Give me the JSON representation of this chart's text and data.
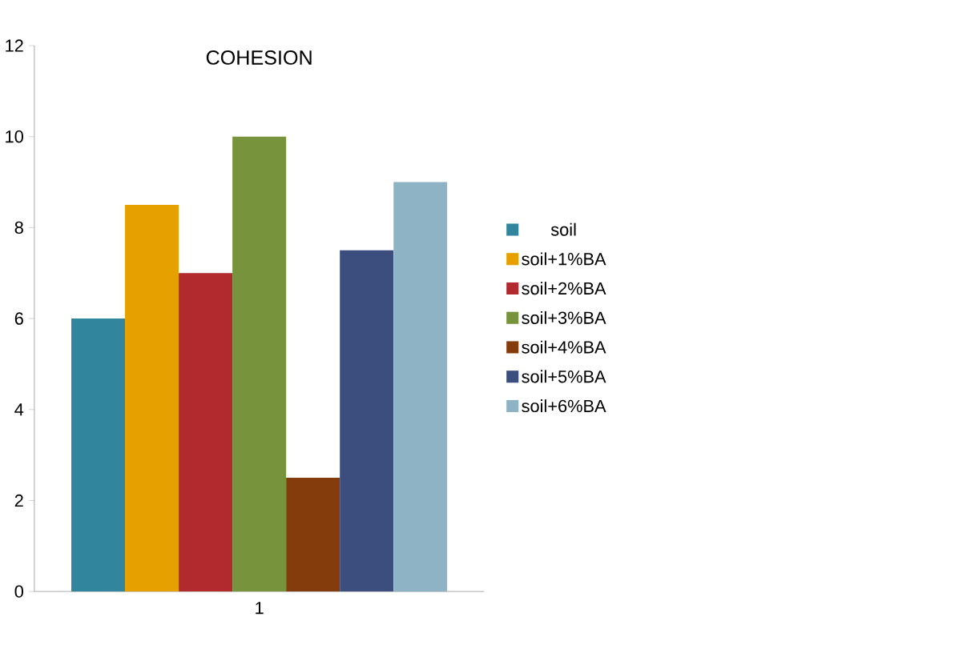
{
  "chart_data": {
    "type": "bar",
    "title": "COHESION",
    "categories": [
      "1"
    ],
    "series": [
      {
        "name": "soil",
        "color": "#31859c",
        "values": [
          6
        ]
      },
      {
        "name": "soil+1%BA",
        "color": "#e6a000",
        "values": [
          8.5
        ]
      },
      {
        "name": "soil+2%BA",
        "color": "#b22a2e",
        "values": [
          7
        ]
      },
      {
        "name": "soil+3%BA",
        "color": "#77933c",
        "values": [
          10
        ]
      },
      {
        "name": "soil+4%BA",
        "color": "#843c0c",
        "values": [
          2.5
        ]
      },
      {
        "name": "soil+5%BA",
        "color": "#3b4e7e",
        "values": [
          7.5
        ]
      },
      {
        "name": "soil+6%BA",
        "color": "#8db3c4",
        "values": [
          9
        ]
      }
    ],
    "ylim": [
      0,
      12
    ],
    "yticks": [
      0,
      2,
      4,
      6,
      8,
      10,
      12
    ],
    "grid": false,
    "legend": "right"
  }
}
